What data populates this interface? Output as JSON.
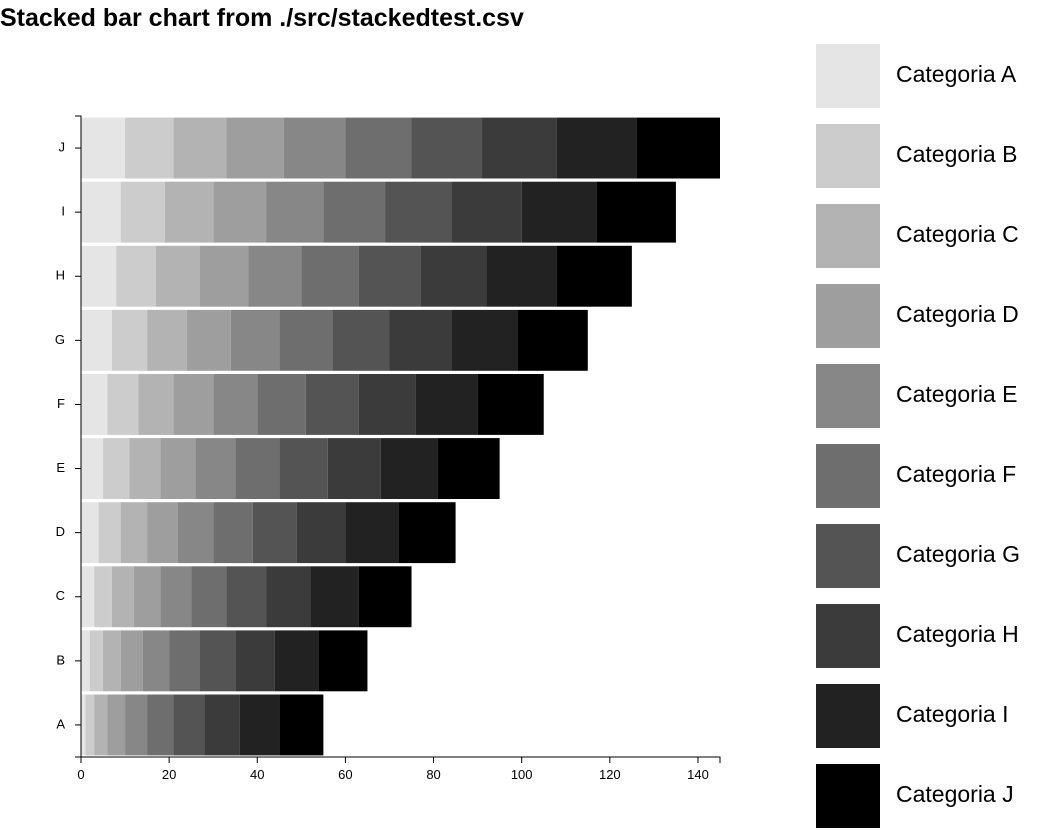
{
  "chart_data": {
    "type": "bar",
    "orientation": "horizontal",
    "stacked": true,
    "title": "Stacked bar chart from ./src/stackedtest.csv",
    "categories": [
      "A",
      "B",
      "C",
      "D",
      "E",
      "F",
      "G",
      "H",
      "I",
      "J"
    ],
    "xlim": [
      0,
      145
    ],
    "xticks": [
      0,
      20,
      40,
      60,
      80,
      100,
      120,
      140
    ],
    "grid": false,
    "legend_position": "right",
    "series": [
      {
        "name": "Categoria A",
        "color": "#e5e5e5",
        "values": [
          1,
          2,
          3,
          4,
          5,
          6,
          7,
          8,
          9,
          10
        ]
      },
      {
        "name": "Categoria B",
        "color": "#cccccc",
        "values": [
          2,
          3,
          4,
          5,
          6,
          7,
          8,
          9,
          10,
          11
        ]
      },
      {
        "name": "Categoria C",
        "color": "#b3b3b3",
        "values": [
          3,
          4,
          5,
          6,
          7,
          8,
          9,
          10,
          11,
          12
        ]
      },
      {
        "name": "Categoria D",
        "color": "#9e9e9e",
        "values": [
          4,
          5,
          6,
          7,
          8,
          9,
          10,
          11,
          12,
          13
        ]
      },
      {
        "name": "Categoria E",
        "color": "#878787",
        "values": [
          5,
          6,
          7,
          8,
          9,
          10,
          11,
          12,
          13,
          14
        ]
      },
      {
        "name": "Categoria F",
        "color": "#6e6e6e",
        "values": [
          6,
          7,
          8,
          9,
          10,
          11,
          12,
          13,
          14,
          15
        ]
      },
      {
        "name": "Categoria G",
        "color": "#545454",
        "values": [
          7,
          8,
          9,
          10,
          11,
          12,
          13,
          14,
          15,
          16
        ]
      },
      {
        "name": "Categoria H",
        "color": "#3b3b3b",
        "values": [
          8,
          9,
          10,
          11,
          12,
          13,
          14,
          15,
          16,
          17
        ]
      },
      {
        "name": "Categoria I",
        "color": "#222222",
        "values": [
          9,
          10,
          11,
          12,
          13,
          14,
          15,
          16,
          17,
          18
        ]
      },
      {
        "name": "Categoria J",
        "color": "#000000",
        "values": [
          10,
          11,
          12,
          13,
          14,
          15,
          16,
          17,
          18,
          19
        ]
      }
    ]
  }
}
